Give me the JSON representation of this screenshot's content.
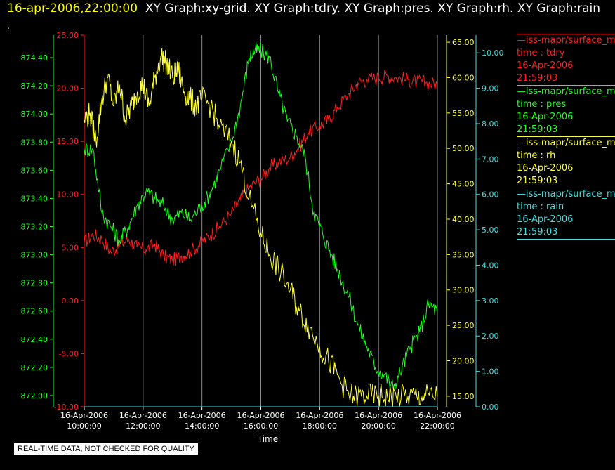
{
  "header": {
    "timestamp": "16-apr-2006,22:00:00",
    "graph_titles": "XY Graph:xy-grid.  XY Graph:tdry.  XY Graph:pres.  XY Graph:rh.  XY Graph:rain",
    "dot": "."
  },
  "notice": "REAL-TIME DATA, NOT CHECKED FOR QUALITY",
  "legend": [
    {
      "name": "—iss-mapr/surface_m",
      "line2": "time : tdry",
      "line3": "16-Apr-2006",
      "line4": "21:59:03",
      "color": "#ff2020"
    },
    {
      "name": "—iss-mapr/surface_m",
      "line2": "time : pres",
      "line3": "16-Apr-2006",
      "line4": "21:59:03",
      "color": "#20ff20"
    },
    {
      "name": "—iss-mapr/surface_m",
      "line2": "time : rh",
      "line3": "16-Apr-2006",
      "line4": "21:59:03",
      "color": "#ffff40"
    },
    {
      "name": "—iss-mapr/surface_m",
      "line2": "time : rain",
      "line3": "16-Apr-2006",
      "line4": "21:59:03",
      "color": "#40e0e0"
    }
  ],
  "chart_data": {
    "type": "line",
    "xlabel": "Time",
    "grid": true,
    "x_ticks": [
      {
        "date": "16-Apr-2006",
        "time": "10:00:00"
      },
      {
        "date": "16-Apr-2006",
        "time": "12:00:00"
      },
      {
        "date": "16-Apr-2006",
        "time": "14:00:00"
      },
      {
        "date": "16-Apr-2006",
        "time": "16:00:00"
      },
      {
        "date": "16-Apr-2006",
        "time": "18:00:00"
      },
      {
        "date": "16-Apr-2006",
        "time": "20:00:00"
      },
      {
        "date": "16-Apr-2006",
        "time": "22:00:00"
      }
    ],
    "x_hours": [
      10,
      12,
      14,
      16,
      18,
      20,
      22
    ],
    "x_range_hours": [
      10,
      22
    ],
    "axes": {
      "pres": {
        "color": "#20ff20",
        "range": [
          871.92,
          874.56
        ],
        "ticks": [
          "872.00",
          "872.20",
          "872.40",
          "872.60",
          "872.80",
          "873.00",
          "873.20",
          "873.40",
          "873.60",
          "873.80",
          "874.00",
          "874.20",
          "874.40"
        ]
      },
      "tdry": {
        "color": "#ff2020",
        "range": [
          -10,
          25
        ],
        "ticks": [
          "-10.00",
          "-5.00",
          "0.00",
          "5.00",
          "10.00",
          "15.00",
          "20.00",
          "25.00"
        ]
      },
      "rh": {
        "color": "#ffff40",
        "range": [
          13.5,
          66
        ],
        "ticks": [
          "15.00",
          "20.00",
          "25.00",
          "30.00",
          "35.00",
          "40.00",
          "45.00",
          "50.00",
          "55.00",
          "60.00",
          "65.00"
        ]
      },
      "rain": {
        "color": "#40e0e0",
        "range": [
          0,
          10.5
        ],
        "ticks": [
          "0.00",
          "1.00",
          "2.00",
          "3.00",
          "4.00",
          "5.00",
          "6.00",
          "7.00",
          "8.00",
          "9.00",
          "10.00"
        ]
      }
    },
    "series": [
      {
        "name": "tdry",
        "axis": "tdry",
        "color": "#ff2020",
        "hours": [
          10,
          10.3,
          10.6,
          10.9,
          11.2,
          11.5,
          11.8,
          12.1,
          12.4,
          12.7,
          13.0,
          13.3,
          13.6,
          14.0,
          14.3,
          14.6,
          15.0,
          15.3,
          15.6,
          16.0,
          16.3,
          16.6,
          17.0,
          17.3,
          17.6,
          18.0,
          18.3,
          18.6,
          19.0,
          19.3,
          19.6,
          20.0,
          20.3,
          20.6,
          21.0,
          21.3,
          21.6,
          22.0
        ],
        "values": [
          5.5,
          6.2,
          5.8,
          4.6,
          5.2,
          5.8,
          5.0,
          4.8,
          5.3,
          4.2,
          3.8,
          4.2,
          4.6,
          5.5,
          6.2,
          7.0,
          8.2,
          9.5,
          10.6,
          11.5,
          12.5,
          13.0,
          13.5,
          14.5,
          15.8,
          16.5,
          17.0,
          18.2,
          19.5,
          20.5,
          20.8,
          21.0,
          21.2,
          21.0,
          20.8,
          20.6,
          20.5,
          20.4
        ]
      },
      {
        "name": "pres",
        "axis": "pres",
        "color": "#20ff20",
        "hours": [
          10,
          10.3,
          10.6,
          10.9,
          11.2,
          11.5,
          11.8,
          12.1,
          12.4,
          12.7,
          13.0,
          13.3,
          13.6,
          14.0,
          14.3,
          14.6,
          15.0,
          15.3,
          15.6,
          15.8,
          16.0,
          16.3,
          16.6,
          16.9,
          17.2,
          17.5,
          17.8,
          18.1,
          18.4,
          18.7,
          19.0,
          19.3,
          19.6,
          19.9,
          20.2,
          20.5,
          20.8,
          21.1,
          21.4,
          21.7,
          22.0
        ],
        "values": [
          873.75,
          873.75,
          873.3,
          873.2,
          873.1,
          873.2,
          873.35,
          873.45,
          873.4,
          873.35,
          873.25,
          873.3,
          873.25,
          873.35,
          873.45,
          873.6,
          873.8,
          874.05,
          874.4,
          874.45,
          874.45,
          874.4,
          874.15,
          873.95,
          873.85,
          873.7,
          873.3,
          873.15,
          873.0,
          872.85,
          872.7,
          872.5,
          872.35,
          872.2,
          872.15,
          872.05,
          872.2,
          872.35,
          872.45,
          872.65,
          872.6
        ]
      },
      {
        "name": "rh",
        "axis": "rh",
        "color": "#ffff40",
        "hours": [
          10,
          10.2,
          10.4,
          10.6,
          10.8,
          11.0,
          11.2,
          11.4,
          11.6,
          11.8,
          12.0,
          12.2,
          12.4,
          12.6,
          12.8,
          13.0,
          13.2,
          13.4,
          13.6,
          13.8,
          14.0,
          14.3,
          14.6,
          15.0,
          15.3,
          15.6,
          16.0,
          16.3,
          16.6,
          17.0,
          17.3,
          17.6,
          18.0,
          18.3,
          18.6,
          19.0,
          19.3,
          19.6,
          20.0,
          20.3,
          20.6,
          21.0,
          21.3,
          21.6,
          22.0
        ],
        "values": [
          54,
          55,
          51,
          57,
          60,
          56,
          59,
          54,
          56,
          58,
          59,
          56,
          60,
          63,
          62,
          60,
          61,
          58,
          57,
          56,
          57,
          56,
          53,
          51,
          48,
          43,
          38,
          35,
          33,
          30,
          27,
          25,
          22,
          20,
          18,
          15,
          15,
          15,
          15,
          15,
          15,
          15,
          15,
          15,
          15
        ]
      },
      {
        "name": "rain",
        "axis": "rain",
        "color": "#40e0e0",
        "hours": [
          10,
          22
        ],
        "values": [
          0,
          0
        ]
      }
    ]
  }
}
